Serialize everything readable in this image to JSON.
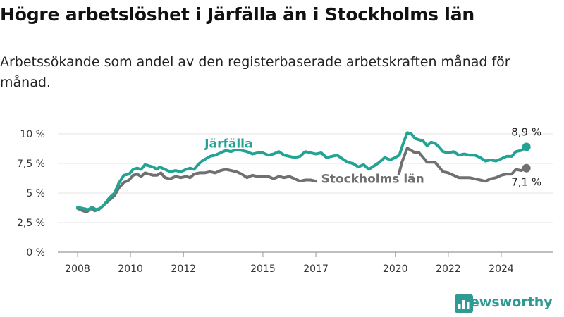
{
  "title": "Högre arbetslöshet i Järfälla än i Stockholms län",
  "subtitle": "Arbetssökande som andel av den registerbaserade arbetskraften månad för månad.",
  "brand": {
    "name": "Newsworthy",
    "logo_icon": "bar-chart-logo-icon"
  },
  "colors": {
    "jarfalla": "#23a393",
    "stockholm": "#707070",
    "grid": "#e5e5e5",
    "axis": "#999999"
  },
  "chart_data": {
    "type": "line",
    "ylim": [
      0,
      10.5
    ],
    "xlim": [
      2007.6,
      2026.0
    ],
    "yticks": [
      {
        "value": 0,
        "label": "0 %"
      },
      {
        "value": 2.5,
        "label": "2,5 %"
      },
      {
        "value": 5,
        "label": "5 %"
      },
      {
        "value": 7.5,
        "label": "7,5 %"
      },
      {
        "value": 10,
        "label": "10 %"
      }
    ],
    "xticks": [
      {
        "value": 2008,
        "label": "2008"
      },
      {
        "value": 2010,
        "label": "2010"
      },
      {
        "value": 2012,
        "label": "2012"
      },
      {
        "value": 2015,
        "label": "2015"
      },
      {
        "value": 2017,
        "label": "2017"
      },
      {
        "value": 2020,
        "label": "2020"
      },
      {
        "value": 2022,
        "label": "2022"
      },
      {
        "value": 2024,
        "label": "2024"
      }
    ],
    "series": [
      {
        "name": "Järfälla",
        "color": "#23a393",
        "segments": [
          [
            [
              2008.0,
              3.8
            ],
            [
              2008.2,
              3.7
            ],
            [
              2008.4,
              3.6
            ],
            [
              2008.55,
              3.8
            ],
            [
              2008.7,
              3.6
            ],
            [
              2008.85,
              3.7
            ],
            [
              2009.0,
              4.0
            ],
            [
              2009.2,
              4.6
            ],
            [
              2009.4,
              5.0
            ],
            [
              2009.55,
              5.8
            ],
            [
              2009.75,
              6.5
            ],
            [
              2009.95,
              6.6
            ],
            [
              2010.1,
              7.0
            ],
            [
              2010.25,
              7.1
            ],
            [
              2010.4,
              7.0
            ],
            [
              2010.55,
              7.4
            ],
            [
              2010.7,
              7.3
            ],
            [
              2010.85,
              7.2
            ],
            [
              2011.0,
              7.0
            ],
            [
              2011.1,
              7.2
            ],
            [
              2011.3,
              7.0
            ],
            [
              2011.5,
              6.8
            ],
            [
              2011.7,
              6.9
            ],
            [
              2011.9,
              6.8
            ],
            [
              2012.1,
              7.0
            ],
            [
              2012.25,
              7.1
            ],
            [
              2012.4,
              7.0
            ],
            [
              2012.55,
              7.4
            ],
            [
              2012.7,
              7.7
            ],
            [
              2012.85,
              7.9
            ],
            [
              2013.0,
              8.1
            ],
            [
              2013.2,
              8.2
            ],
            [
              2013.4,
              8.4
            ],
            [
              2013.6,
              8.6
            ],
            [
              2013.8,
              8.5
            ],
            [
              2014.0,
              8.7
            ],
            [
              2014.2,
              8.6
            ],
            [
              2014.4,
              8.5
            ],
            [
              2014.6,
              8.3
            ],
            [
              2014.8,
              8.4
            ],
            [
              2015.0,
              8.4
            ],
            [
              2015.2,
              8.2
            ],
            [
              2015.4,
              8.3
            ],
            [
              2015.6,
              8.5
            ],
            [
              2015.8,
              8.2
            ],
            [
              2016.0,
              8.1
            ],
            [
              2016.2,
              8.0
            ],
            [
              2016.4,
              8.1
            ],
            [
              2016.6,
              8.5
            ],
            [
              2016.8,
              8.4
            ],
            [
              2017.0,
              8.3
            ],
            [
              2017.2,
              8.4
            ],
            [
              2017.4,
              8.0
            ],
            [
              2017.6,
              8.1
            ],
            [
              2017.8,
              8.2
            ],
            [
              2018.0,
              7.9
            ],
            [
              2018.2,
              7.6
            ],
            [
              2018.4,
              7.5
            ],
            [
              2018.6,
              7.2
            ],
            [
              2018.8,
              7.4
            ],
            [
              2019.0,
              7.0
            ],
            [
              2019.2,
              7.3
            ],
            [
              2019.4,
              7.6
            ],
            [
              2019.6,
              8.0
            ],
            [
              2019.8,
              7.8
            ],
            [
              2020.0,
              8.0
            ],
            [
              2020.15,
              8.2
            ],
            [
              2020.3,
              9.2
            ],
            [
              2020.45,
              10.1
            ],
            [
              2020.6,
              10.0
            ],
            [
              2020.75,
              9.6
            ],
            [
              2020.9,
              9.5
            ],
            [
              2021.05,
              9.4
            ],
            [
              2021.2,
              9.0
            ],
            [
              2021.35,
              9.3
            ],
            [
              2021.5,
              9.2
            ],
            [
              2021.65,
              8.9
            ],
            [
              2021.8,
              8.5
            ],
            [
              2022.0,
              8.4
            ],
            [
              2022.2,
              8.5
            ],
            [
              2022.4,
              8.2
            ],
            [
              2022.6,
              8.3
            ],
            [
              2022.8,
              8.2
            ],
            [
              2023.0,
              8.2
            ],
            [
              2023.2,
              8.0
            ],
            [
              2023.4,
              7.7
            ],
            [
              2023.6,
              7.8
            ],
            [
              2023.8,
              7.7
            ],
            [
              2024.0,
              7.9
            ],
            [
              2024.2,
              8.1
            ],
            [
              2024.4,
              8.1
            ],
            [
              2024.55,
              8.5
            ],
            [
              2024.75,
              8.6
            ],
            [
              2024.95,
              8.9
            ]
          ]
        ],
        "end_value": 8.9,
        "end_label": "8,9 %"
      },
      {
        "name": "Stockholms län",
        "color": "#707070",
        "segments": [
          [
            [
              2008.0,
              3.7
            ],
            [
              2008.2,
              3.5
            ],
            [
              2008.35,
              3.4
            ],
            [
              2008.5,
              3.7
            ],
            [
              2008.65,
              3.5
            ],
            [
              2008.8,
              3.6
            ],
            [
              2009.0,
              4.0
            ],
            [
              2009.2,
              4.4
            ],
            [
              2009.4,
              4.8
            ],
            [
              2009.55,
              5.4
            ],
            [
              2009.75,
              5.9
            ],
            [
              2009.95,
              6.1
            ],
            [
              2010.1,
              6.5
            ],
            [
              2010.25,
              6.6
            ],
            [
              2010.4,
              6.4
            ],
            [
              2010.55,
              6.7
            ],
            [
              2010.7,
              6.6
            ],
            [
              2010.85,
              6.5
            ],
            [
              2011.0,
              6.5
            ],
            [
              2011.15,
              6.7
            ],
            [
              2011.3,
              6.3
            ],
            [
              2011.5,
              6.2
            ],
            [
              2011.7,
              6.4
            ],
            [
              2011.9,
              6.3
            ],
            [
              2012.1,
              6.4
            ],
            [
              2012.25,
              6.3
            ],
            [
              2012.4,
              6.6
            ],
            [
              2012.6,
              6.7
            ],
            [
              2012.8,
              6.7
            ],
            [
              2013.0,
              6.8
            ],
            [
              2013.2,
              6.7
            ],
            [
              2013.4,
              6.9
            ],
            [
              2013.6,
              7.0
            ],
            [
              2013.8,
              6.9
            ],
            [
              2014.0,
              6.8
            ],
            [
              2014.2,
              6.6
            ],
            [
              2014.4,
              6.3
            ],
            [
              2014.6,
              6.5
            ],
            [
              2014.8,
              6.4
            ],
            [
              2015.0,
              6.4
            ],
            [
              2015.2,
              6.4
            ],
            [
              2015.4,
              6.2
            ],
            [
              2015.6,
              6.4
            ],
            [
              2015.8,
              6.3
            ],
            [
              2016.0,
              6.4
            ],
            [
              2016.2,
              6.2
            ],
            [
              2016.4,
              6.0
            ],
            [
              2016.6,
              6.1
            ],
            [
              2016.8,
              6.1
            ],
            [
              2017.0,
              6.0
            ]
          ],
          [
            [
              2020.1,
              6.3
            ],
            [
              2020.25,
              7.6
            ],
            [
              2020.45,
              8.8
            ],
            [
              2020.6,
              8.6
            ],
            [
              2020.75,
              8.4
            ],
            [
              2020.9,
              8.4
            ],
            [
              2021.05,
              8.0
            ],
            [
              2021.2,
              7.6
            ],
            [
              2021.35,
              7.6
            ],
            [
              2021.5,
              7.6
            ],
            [
              2021.65,
              7.2
            ],
            [
              2021.8,
              6.8
            ],
            [
              2022.0,
              6.7
            ],
            [
              2022.2,
              6.5
            ],
            [
              2022.4,
              6.3
            ],
            [
              2022.6,
              6.3
            ],
            [
              2022.8,
              6.3
            ],
            [
              2023.0,
              6.2
            ],
            [
              2023.2,
              6.1
            ],
            [
              2023.4,
              6.0
            ],
            [
              2023.6,
              6.2
            ],
            [
              2023.8,
              6.3
            ],
            [
              2024.0,
              6.5
            ],
            [
              2024.2,
              6.6
            ],
            [
              2024.4,
              6.6
            ],
            [
              2024.55,
              7.0
            ],
            [
              2024.75,
              6.9
            ],
            [
              2024.95,
              7.1
            ]
          ]
        ],
        "end_value": 7.1,
        "end_label": "7,1 %"
      }
    ],
    "series_labels": [
      {
        "series": "Järfälla",
        "text": "Järfälla",
        "x": 2012.8,
        "y": 8.85
      },
      {
        "series": "Stockholms län",
        "text": "Stockholms län",
        "x": 2017.2,
        "y": 5.85
      }
    ]
  }
}
